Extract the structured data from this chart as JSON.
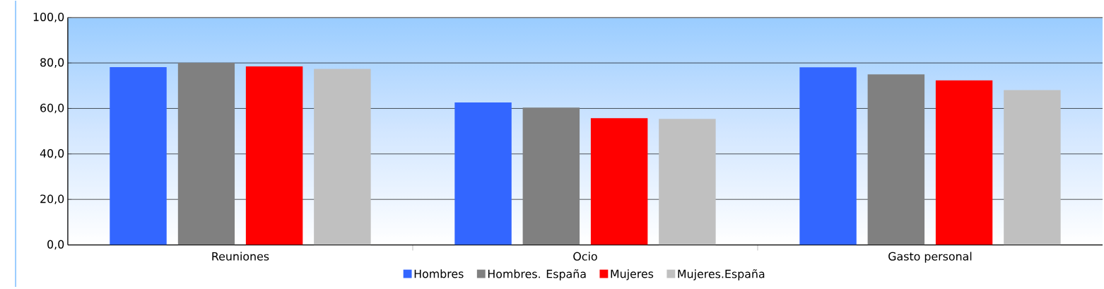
{
  "chart_data": {
    "type": "bar",
    "categories": [
      "Reuniones",
      "Ocio",
      "Gasto personal"
    ],
    "series": [
      {
        "name": "Hombres",
        "color": "#3366ff",
        "values": [
          78.2,
          62.6,
          78.1
        ]
      },
      {
        "name": "Hombres. España",
        "color": "#808080",
        "values": [
          80.1,
          60.4,
          75.0
        ]
      },
      {
        "name": "Mujeres",
        "color": "#ff0000",
        "values": [
          78.5,
          55.7,
          72.3
        ]
      },
      {
        "name": "Mujeres.España",
        "color": "#c0c0c0",
        "values": [
          77.4,
          55.4,
          68.1
        ]
      }
    ],
    "ylim": [
      0,
      100
    ],
    "yticks": [
      {
        "value": 0,
        "label": "0,0"
      },
      {
        "value": 20,
        "label": "20,0"
      },
      {
        "value": 40,
        "label": "40,0"
      },
      {
        "value": 60,
        "label": "60,0"
      },
      {
        "value": 80,
        "label": "80,0"
      },
      {
        "value": 100,
        "label": "100,0"
      }
    ],
    "grid": "y",
    "legend": "bottom"
  }
}
